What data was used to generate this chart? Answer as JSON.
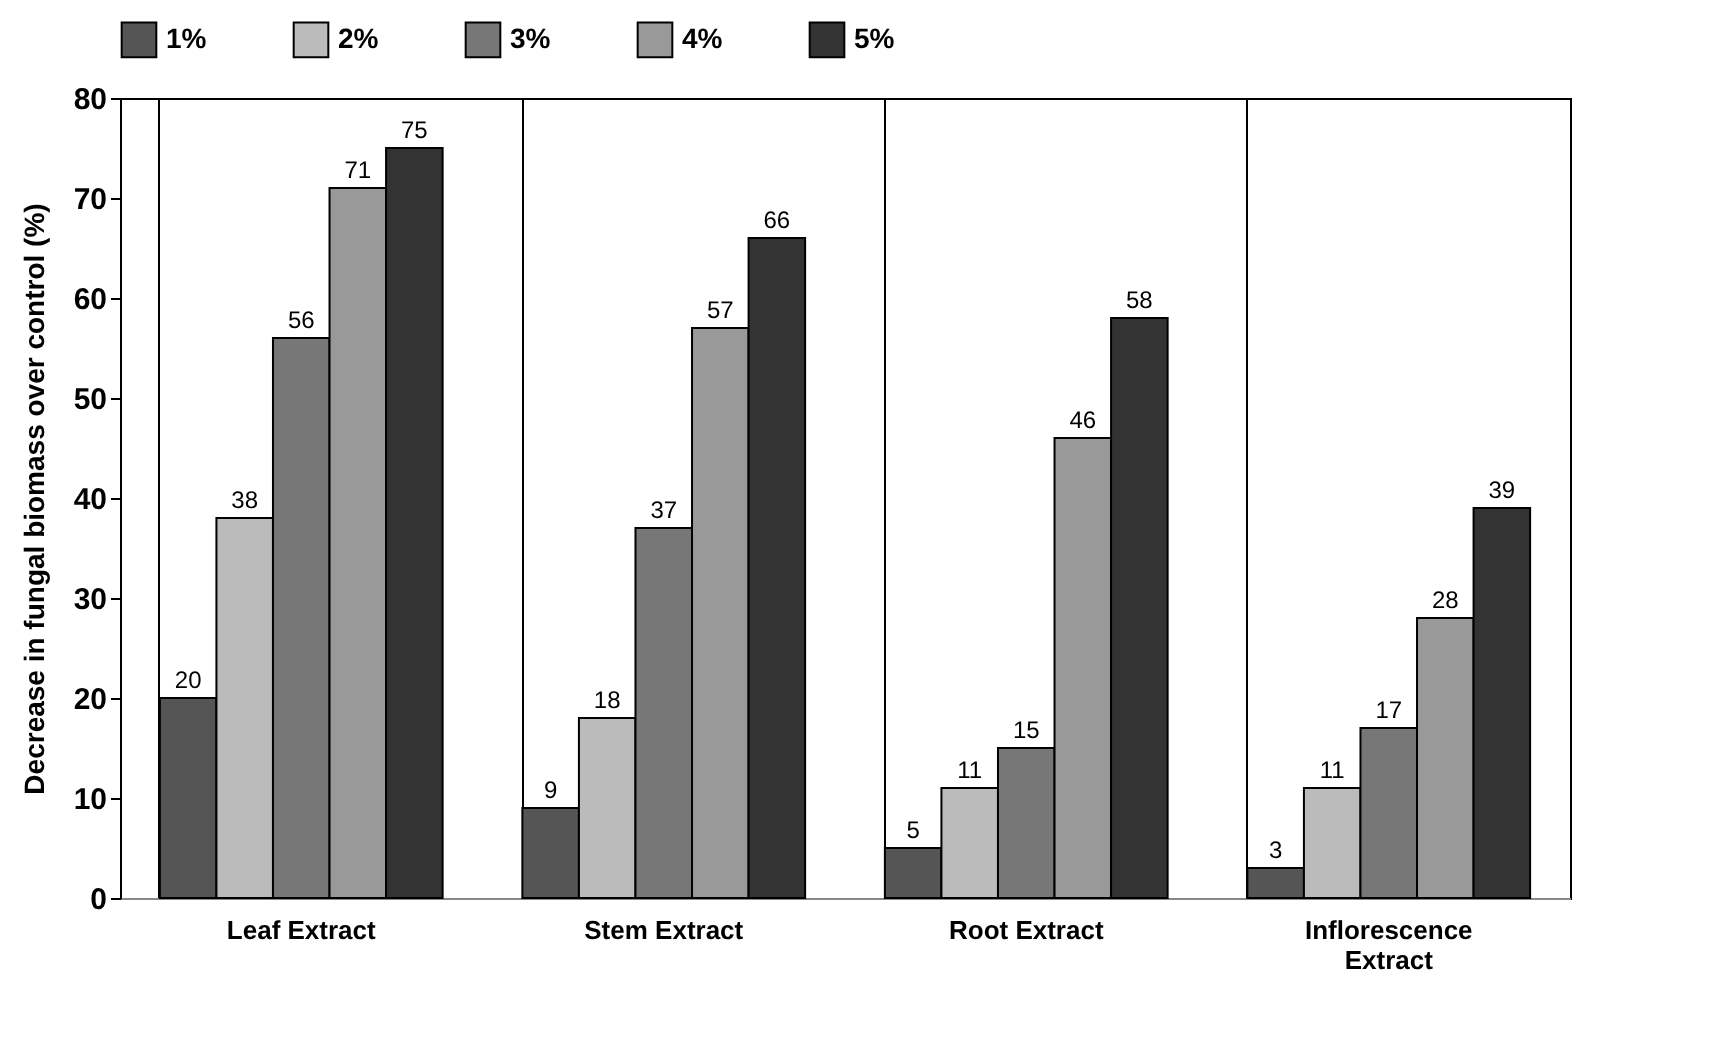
{
  "chart_data": {
    "type": "bar",
    "ylabel": "Decrease in fungal biomass over control (%)",
    "categories": [
      "Leaf Extract",
      "Stem Extract",
      "Root Extract",
      "Inflorescence Extract"
    ],
    "series": [
      {
        "name": "1%",
        "color": "#555555",
        "values": [
          20,
          9,
          5,
          3
        ]
      },
      {
        "name": "2%",
        "color": "#bbbbbb",
        "values": [
          38,
          18,
          11,
          11
        ]
      },
      {
        "name": "3%",
        "color": "#777777",
        "values": [
          56,
          37,
          15,
          17
        ]
      },
      {
        "name": "4%",
        "color": "#999999",
        "values": [
          71,
          57,
          46,
          28
        ]
      },
      {
        "name": "5%",
        "color": "#333333",
        "values": [
          75,
          66,
          58,
          39
        ]
      }
    ],
    "ylim": [
      0,
      80
    ],
    "yticks": [
      0,
      10,
      20,
      30,
      40,
      50,
      60,
      70,
      80
    ],
    "grid": "x",
    "legend": "top",
    "data_labels": true
  }
}
